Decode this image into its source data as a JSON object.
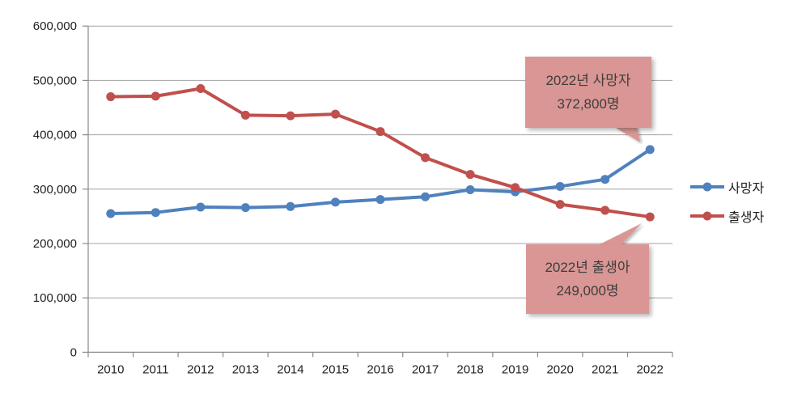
{
  "chart_data": {
    "type": "line",
    "title": "",
    "categories": [
      "2010",
      "2011",
      "2012",
      "2013",
      "2014",
      "2015",
      "2016",
      "2017",
      "2018",
      "2019",
      "2020",
      "2021",
      "2022"
    ],
    "series": [
      {
        "name": "사망자",
        "color": "#4F81BD",
        "values": [
          255000,
          257000,
          267000,
          266000,
          268000,
          276000,
          281000,
          286000,
          299000,
          295000,
          305000,
          318000,
          372800
        ]
      },
      {
        "name": "출생자",
        "color": "#C0504D",
        "values": [
          470000,
          471000,
          485000,
          436000,
          435000,
          438000,
          406000,
          358000,
          327000,
          303000,
          272000,
          261000,
          249000
        ]
      }
    ],
    "xlabel": "",
    "ylabel": "",
    "ylim": [
      0,
      600000
    ],
    "ytick_step": 100000,
    "grid": true,
    "legend_position": "right",
    "annotations": [
      {
        "line1": "2022년 사망자",
        "line2": "372,800명",
        "fill": "#D99694"
      },
      {
        "line1": "2022년 출생아",
        "line2": "249,000명",
        "fill": "#D99694"
      }
    ]
  },
  "colors": {
    "deaths_line": "#4F81BD",
    "births_line": "#C0504D",
    "callout_fill": "#D99694",
    "gridline": "#A3A3A3",
    "axis": "#8A8A8A"
  }
}
